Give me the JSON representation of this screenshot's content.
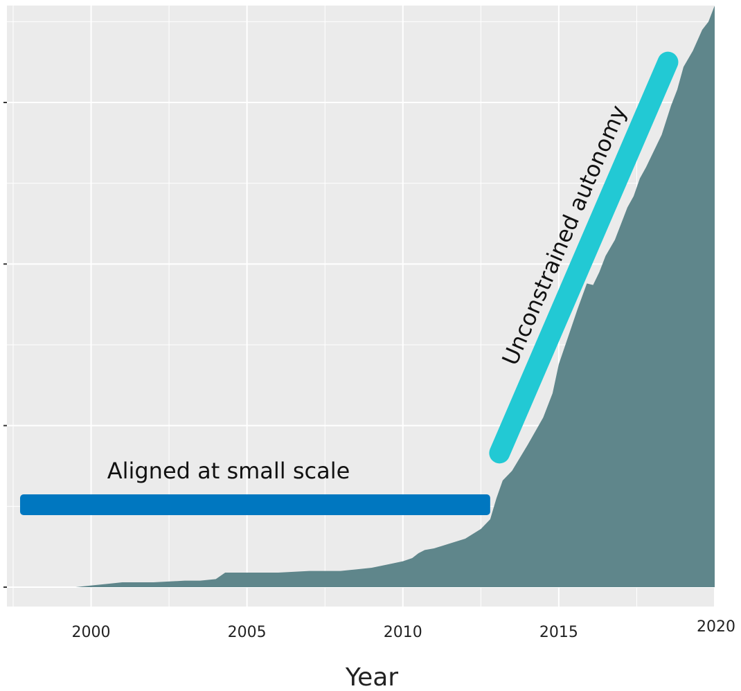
{
  "chart_data": {
    "type": "area",
    "title": "",
    "xlabel": "Year",
    "ylabel": "",
    "xlim": [
      1997.3,
      2020
    ],
    "ylim": [
      -0.12,
      3.6
    ],
    "x_ticks": [
      2000,
      2005,
      2010,
      2015,
      2020
    ],
    "x_tick_labels": [
      "2000",
      "2005",
      "2010",
      "2015",
      "2020"
    ],
    "y_ticks": [
      0,
      1,
      2,
      3
    ],
    "grid": true,
    "colors": {
      "panel": "#ebebeb",
      "grid": "#ffffff",
      "area": "#5f868b",
      "bar_aligned": "#0077c0",
      "bar_autonomy": "#22c9d4"
    },
    "series": [
      {
        "x": [
          1998.5,
          1999.5,
          2000.0,
          2000.5,
          2001.0,
          2001.5,
          2002.0,
          2003.0,
          2003.5,
          2004.0,
          2004.3,
          2005.0,
          2006.0,
          2007.0,
          2008.0,
          2008.5,
          2009.0,
          2009.5,
          2010.0,
          2010.3,
          2010.5,
          2010.7,
          2011.0,
          2011.5,
          2012.0,
          2012.5,
          2012.8,
          2013.0,
          2013.2,
          2013.5,
          2014.0,
          2014.5,
          2014.8,
          2015.0,
          2015.3,
          2015.6,
          2015.9,
          2016.1,
          2016.3,
          2016.5,
          2016.8,
          2017.0,
          2017.2,
          2017.4,
          2017.6,
          2017.8,
          2018.0,
          2018.3,
          2018.6,
          2018.8,
          2019.0,
          2019.3,
          2019.6,
          2019.8,
          2020.0
        ],
        "values": [
          0.0,
          0.0,
          0.01,
          0.02,
          0.03,
          0.03,
          0.03,
          0.04,
          0.04,
          0.05,
          0.09,
          0.09,
          0.09,
          0.1,
          0.1,
          0.11,
          0.12,
          0.14,
          0.16,
          0.18,
          0.21,
          0.23,
          0.24,
          0.27,
          0.3,
          0.36,
          0.42,
          0.55,
          0.66,
          0.72,
          0.88,
          1.05,
          1.2,
          1.38,
          1.55,
          1.72,
          1.88,
          1.87,
          1.95,
          2.05,
          2.15,
          2.25,
          2.35,
          2.42,
          2.53,
          2.6,
          2.68,
          2.8,
          2.98,
          3.08,
          3.22,
          3.32,
          3.45,
          3.5,
          3.6
        ]
      }
    ],
    "annotations": [
      {
        "label": "Aligned at small scale",
        "type": "horizontal-bar",
        "x": [
          1997.5,
          2012.8
        ],
        "y": 0.51
      },
      {
        "label": "Unconstrained autonomy",
        "type": "diagonal-bar",
        "x": [
          2013.1,
          2018.5
        ],
        "y": [
          0.83,
          3.25
        ]
      }
    ]
  }
}
